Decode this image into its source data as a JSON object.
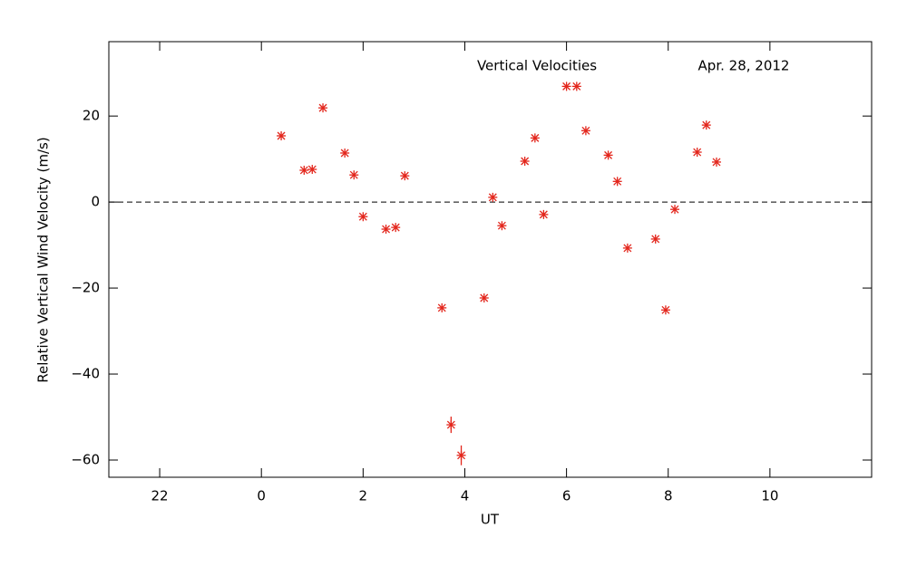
{
  "chart_data": {
    "type": "scatter",
    "title": "Vertical Velocities",
    "annotation": "Apr. 28, 2012",
    "x_label": "UT",
    "y_label": "Relative Vertical Wind Velocity (m/s)",
    "xlim": [
      -3,
      12
    ],
    "xticks": [
      {
        "value": -2,
        "label": "22"
      },
      0,
      2,
      4,
      6,
      8,
      10
    ],
    "ylim": [
      -64,
      37.3
    ],
    "yticks": [
      {
        "value": -60,
        "label": "−60"
      },
      {
        "value": -40,
        "label": "−40"
      },
      {
        "value": -20,
        "label": "−20"
      },
      0,
      20
    ],
    "zero_line": true,
    "color": "#e3261c",
    "x": [
      0.39,
      0.84,
      1.0,
      1.21,
      1.64,
      1.82,
      2.0,
      2.45,
      2.64,
      2.82,
      3.55,
      3.73,
      3.93,
      4.38,
      4.55,
      4.73,
      5.18,
      5.38,
      5.55,
      6.0,
      6.2,
      6.38,
      6.82,
      7.0,
      7.2,
      7.75,
      7.95,
      8.13,
      8.57,
      8.75,
      8.95
    ],
    "values": [
      15.4,
      7.4,
      7.6,
      21.9,
      11.4,
      6.3,
      -3.4,
      -6.3,
      -5.9,
      6.1,
      -24.6,
      -51.8,
      -58.9,
      -22.3,
      1.1,
      -5.5,
      9.5,
      14.9,
      -2.9,
      26.9,
      26.9,
      16.6,
      10.9,
      4.8,
      -10.7,
      -8.6,
      -25.1,
      -1.7,
      11.6,
      17.9,
      9.3
    ],
    "errors": [
      null,
      null,
      null,
      null,
      null,
      null,
      null,
      null,
      null,
      null,
      null,
      1.9,
      2.3,
      null,
      null,
      null,
      null,
      null,
      null,
      null,
      null,
      null,
      null,
      null,
      null,
      null,
      null,
      null,
      null,
      null,
      null
    ]
  }
}
